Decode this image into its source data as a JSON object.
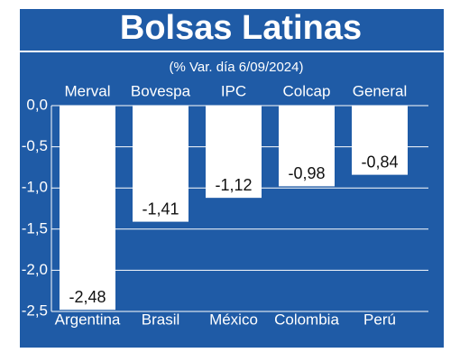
{
  "chart_data": {
    "type": "bar",
    "title": "Bolsas Latinas",
    "subtitle": "(% Var. día 6/09/2024)",
    "categories": [
      "Argentina",
      "Brasil",
      "México",
      "Colombia",
      "Perú"
    ],
    "index_names": [
      "Merval",
      "Bovespa",
      "IPC",
      "Colcap",
      "General"
    ],
    "values": [
      -2.48,
      -1.41,
      -1.12,
      -0.98,
      -0.84
    ],
    "value_labels": [
      "-2,48",
      "-1,41",
      "-1,12",
      "-0,98",
      "-0,84"
    ],
    "color": "#ffffff",
    "background": "#1f5ba6",
    "ylim": [
      0,
      -2.5
    ],
    "yticks": [
      {
        "value": 0,
        "label": "0,0"
      },
      {
        "value": -0.5,
        "label": "-0,5"
      },
      {
        "value": -1,
        "label": "-1,0"
      },
      {
        "value": -1.5,
        "label": "-1,5"
      },
      {
        "value": -2,
        "label": "-2,0"
      },
      {
        "value": -2.5,
        "label": "-2,5"
      }
    ],
    "grid": true
  }
}
